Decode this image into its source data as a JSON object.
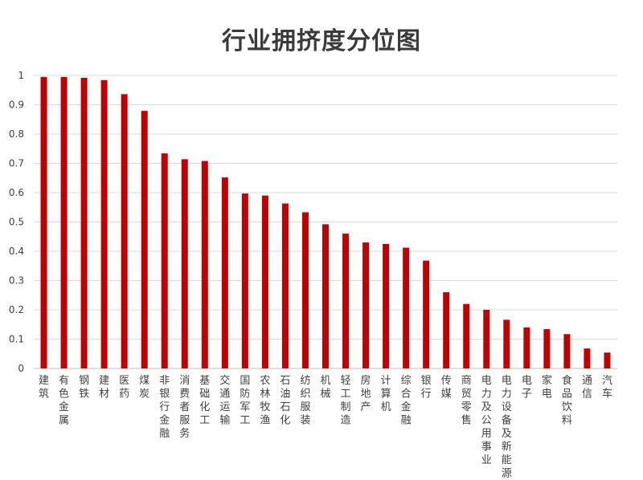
{
  "chart_data": {
    "type": "bar",
    "title": "行业拥挤度分位图",
    "xlabel": "",
    "ylabel": "",
    "ylim": [
      0,
      1
    ],
    "yticks": [
      "0",
      "0.1",
      "0.2",
      "0.3",
      "0.4",
      "0.5",
      "0.6",
      "0.7",
      "0.8",
      "0.9",
      "1"
    ],
    "grid": true,
    "legend": "none",
    "bar_color": "#C00000",
    "categories": [
      "建筑",
      "有色金属",
      "钢铁",
      "建材",
      "医药",
      "煤炭",
      "非银行金融",
      "消费者服务",
      "基础化工",
      "交通运输",
      "国防军工",
      "农林牧渔",
      "石油石化",
      "纺织服装",
      "机械",
      "轻工制造",
      "房地产",
      "计算机",
      "综合金融",
      "银行",
      "传媒",
      "商贸零售",
      "电力及公用事业",
      "电力设备及新能源",
      "电子",
      "家电",
      "食品饮料",
      "通信",
      "汽车"
    ],
    "values": [
      0.995,
      0.995,
      0.992,
      0.984,
      0.936,
      0.879,
      0.734,
      0.714,
      0.708,
      0.652,
      0.597,
      0.59,
      0.563,
      0.533,
      0.492,
      0.46,
      0.43,
      0.425,
      0.412,
      0.368,
      0.26,
      0.22,
      0.2,
      0.166,
      0.14,
      0.134,
      0.117,
      0.068,
      0.054
    ]
  }
}
